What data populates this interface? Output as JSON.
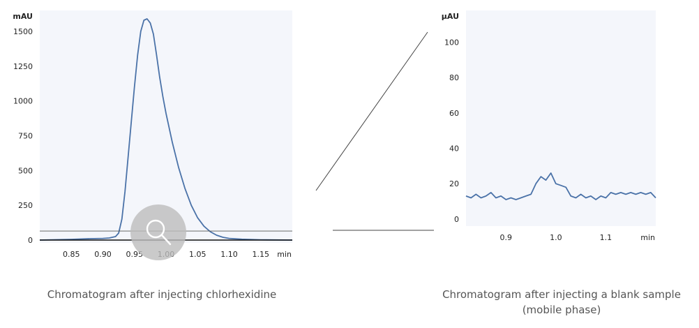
{
  "colors": {
    "plot_bg": "#f4f6fb",
    "trace": "#4a72a8",
    "axis": "#111111",
    "connector": "#444444",
    "zoom_circle": "#bdbdbd"
  },
  "icons": {
    "zoom": "magnifier-icon"
  },
  "chart_data": [
    {
      "type": "line",
      "title": "",
      "xlabel": "min",
      "ylabel": "mAU",
      "xlim": [
        0.8,
        1.2
      ],
      "ylim": [
        -20,
        1650
      ],
      "x_ticks": [
        0.85,
        0.9,
        0.95,
        1.0,
        1.05,
        1.1,
        1.15
      ],
      "x_tick_labels": [
        "0.85",
        "0.90",
        "0.95",
        "1.00",
        "1.05",
        "1.10",
        "1.15"
      ],
      "y_ticks": [
        0,
        250,
        500,
        750,
        1000,
        1250,
        1500
      ],
      "y_tick_labels": [
        "0",
        "250",
        "500",
        "750",
        "1000",
        "1250",
        "1500"
      ],
      "zoom_band": [
        0,
        65
      ],
      "caption": "Chromatogram after injecting chlorhexidine",
      "series": [
        {
          "x": [
            0.8,
            0.85,
            0.88,
            0.9,
            0.91,
            0.92,
            0.925,
            0.93,
            0.935,
            0.94,
            0.945,
            0.95,
            0.955,
            0.96,
            0.965,
            0.97,
            0.975,
            0.98,
            0.985,
            0.99,
            0.995,
            1.0,
            1.01,
            1.02,
            1.03,
            1.04,
            1.05,
            1.06,
            1.07,
            1.08,
            1.09,
            1.1,
            1.12,
            1.15,
            1.2
          ],
          "y": [
            0,
            5,
            10,
            12,
            15,
            25,
            50,
            150,
            350,
            600,
            850,
            1100,
            1330,
            1500,
            1580,
            1590,
            1560,
            1480,
            1330,
            1170,
            1030,
            910,
            700,
            520,
            370,
            250,
            160,
            100,
            60,
            35,
            20,
            12,
            6,
            2,
            0
          ]
        }
      ]
    },
    {
      "type": "line",
      "title": "",
      "xlabel": "min",
      "ylabel": "μAU",
      "xlim": [
        0.82,
        1.2
      ],
      "ylim": [
        -4,
        118
      ],
      "x_ticks": [
        0.9,
        1.0,
        1.1
      ],
      "x_tick_labels": [
        "0.9",
        "1.0",
        "1.1"
      ],
      "y_ticks": [
        0,
        20,
        40,
        60,
        80,
        100
      ],
      "y_tick_labels": [
        "0",
        "20",
        "40",
        "60",
        "80",
        "100"
      ],
      "caption": "Chromatogram after injecting a blank sample (mobile phase)",
      "series": [
        {
          "x": [
            0.82,
            0.83,
            0.84,
            0.85,
            0.86,
            0.87,
            0.88,
            0.89,
            0.9,
            0.91,
            0.92,
            0.93,
            0.94,
            0.95,
            0.96,
            0.97,
            0.98,
            0.99,
            1.0,
            1.01,
            1.02,
            1.03,
            1.04,
            1.05,
            1.06,
            1.07,
            1.08,
            1.09,
            1.1,
            1.11,
            1.12,
            1.13,
            1.14,
            1.15,
            1.16,
            1.17,
            1.18,
            1.19,
            1.2
          ],
          "y": [
            13,
            12,
            14,
            12,
            13,
            15,
            12,
            13,
            11,
            12,
            11,
            12,
            13,
            14,
            20,
            24,
            22,
            26,
            20,
            19,
            18,
            13,
            12,
            14,
            12,
            13,
            11,
            13,
            12,
            15,
            14,
            15,
            14,
            15,
            14,
            15,
            14,
            15,
            12
          ]
        }
      ]
    }
  ]
}
